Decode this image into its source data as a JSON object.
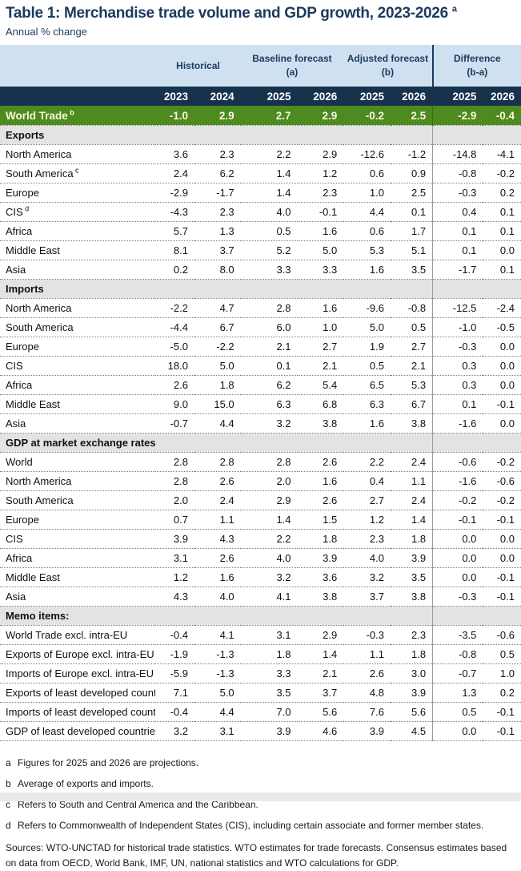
{
  "title": {
    "text": "Table 1: Merchandise trade volume and GDP growth, 2023-2026",
    "superscript": "a"
  },
  "subtitle": "Annual % change",
  "colors": {
    "title_navy": "#1c3a5e",
    "header_band_blue": "#cfe0f1",
    "year_band_navy": "#16324d",
    "world_trade_green": "#4d8a20",
    "world_trade_text": "#faf6dc",
    "section_gray": "#e3e3e3"
  },
  "table": {
    "group_headers": [
      {
        "label": "Historical",
        "sub": ""
      },
      {
        "label": "Baseline forecast",
        "sub": "(a)"
      },
      {
        "label": "Adjusted forecast",
        "sub": "(b)"
      },
      {
        "label": "Difference",
        "sub": "(b-a)"
      }
    ],
    "year_columns": [
      "2023",
      "2024",
      "2025",
      "2026",
      "2025",
      "2026",
      "2025",
      "2026"
    ],
    "world_trade_row": {
      "label": "World Trade",
      "superscript": "b",
      "values": [
        "-1.0",
        "2.9",
        "2.7",
        "2.9",
        "-0.2",
        "2.5",
        "-2.9",
        "-0.4"
      ]
    },
    "sections": [
      {
        "header": "Exports",
        "rows": [
          {
            "label": "North America",
            "superscript": "",
            "values": [
              "3.6",
              "2.3",
              "2.2",
              "2.9",
              "-12.6",
              "-1.2",
              "-14.8",
              "-4.1"
            ]
          },
          {
            "label": "South America",
            "superscript": "c",
            "values": [
              "2.4",
              "6.2",
              "1.4",
              "1.2",
              "0.6",
              "0.9",
              "-0.8",
              "-0.2"
            ]
          },
          {
            "label": "Europe",
            "superscript": "",
            "values": [
              "-2.9",
              "-1.7",
              "1.4",
              "2.3",
              "1.0",
              "2.5",
              "-0.3",
              "0.2"
            ]
          },
          {
            "label": "CIS",
            "superscript": "d",
            "values": [
              "-4.3",
              "2.3",
              "4.0",
              "-0.1",
              "4.4",
              "0.1",
              "0.4",
              "0.1"
            ]
          },
          {
            "label": "Africa",
            "superscript": "",
            "values": [
              "5.7",
              "1.3",
              "0.5",
              "1.6",
              "0.6",
              "1.7",
              "0.1",
              "0.1"
            ]
          },
          {
            "label": "Middle East",
            "superscript": "",
            "values": [
              "8.1",
              "3.7",
              "5.2",
              "5.0",
              "5.3",
              "5.1",
              "0.1",
              "0.0"
            ]
          },
          {
            "label": "Asia",
            "superscript": "",
            "values": [
              "0.2",
              "8.0",
              "3.3",
              "3.3",
              "1.6",
              "3.5",
              "-1.7",
              "0.1"
            ]
          }
        ]
      },
      {
        "header": "Imports",
        "rows": [
          {
            "label": "North America",
            "superscript": "",
            "values": [
              "-2.2",
              "4.7",
              "2.8",
              "1.6",
              "-9.6",
              "-0.8",
              "-12.5",
              "-2.4"
            ]
          },
          {
            "label": "South America",
            "superscript": "",
            "values": [
              "-4.4",
              "6.7",
              "6.0",
              "1.0",
              "5.0",
              "0.5",
              "-1.0",
              "-0.5"
            ]
          },
          {
            "label": "Europe",
            "superscript": "",
            "values": [
              "-5.0",
              "-2.2",
              "2.1",
              "2.7",
              "1.9",
              "2.7",
              "-0.3",
              "0.0"
            ]
          },
          {
            "label": "CIS",
            "superscript": "",
            "values": [
              "18.0",
              "5.0",
              "0.1",
              "2.1",
              "0.5",
              "2.1",
              "0.3",
              "0.0"
            ]
          },
          {
            "label": "Africa",
            "superscript": "",
            "values": [
              "2.6",
              "1.8",
              "6.2",
              "5.4",
              "6.5",
              "5.3",
              "0.3",
              "0.0"
            ]
          },
          {
            "label": "Middle East",
            "superscript": "",
            "values": [
              "9.0",
              "15.0",
              "6.3",
              "6.8",
              "6.3",
              "6.7",
              "0.1",
              "-0.1"
            ]
          },
          {
            "label": "Asia",
            "superscript": "",
            "values": [
              "-0.7",
              "4.4",
              "3.2",
              "3.8",
              "1.6",
              "3.8",
              "-1.6",
              "0.0"
            ]
          }
        ]
      },
      {
        "header": "GDP at market exchange rates",
        "rows": [
          {
            "label": "World",
            "superscript": "",
            "values": [
              "2.8",
              "2.8",
              "2.8",
              "2.6",
              "2.2",
              "2.4",
              "-0.6",
              "-0.2"
            ]
          },
          {
            "label": "North America",
            "superscript": "",
            "values": [
              "2.8",
              "2.6",
              "2.0",
              "1.6",
              "0.4",
              "1.1",
              "-1.6",
              "-0.6"
            ]
          },
          {
            "label": "South America",
            "superscript": "",
            "values": [
              "2.0",
              "2.4",
              "2.9",
              "2.6",
              "2.7",
              "2.4",
              "-0.2",
              "-0.2"
            ]
          },
          {
            "label": "Europe",
            "superscript": "",
            "values": [
              "0.7",
              "1.1",
              "1.4",
              "1.5",
              "1.2",
              "1.4",
              "-0.1",
              "-0.1"
            ]
          },
          {
            "label": "CIS",
            "superscript": "",
            "values": [
              "3.9",
              "4.3",
              "2.2",
              "1.8",
              "2.3",
              "1.8",
              "0.0",
              "0.0"
            ]
          },
          {
            "label": "Africa",
            "superscript": "",
            "values": [
              "3.1",
              "2.6",
              "4.0",
              "3.9",
              "4.0",
              "3.9",
              "0.0",
              "0.0"
            ]
          },
          {
            "label": "Middle East",
            "superscript": "",
            "values": [
              "1.2",
              "1.6",
              "3.2",
              "3.6",
              "3.2",
              "3.5",
              "0.0",
              "-0.1"
            ]
          },
          {
            "label": "Asia",
            "superscript": "",
            "values": [
              "4.3",
              "4.0",
              "4.1",
              "3.8",
              "3.7",
              "3.8",
              "-0.3",
              "-0.1"
            ]
          }
        ]
      },
      {
        "header": "Memo items:",
        "rows": [
          {
            "label": "World Trade excl. intra-EU",
            "superscript": "",
            "values": [
              "-0.4",
              "4.1",
              "3.1",
              "2.9",
              "-0.3",
              "2.3",
              "-3.5",
              "-0.6"
            ]
          },
          {
            "label": "Exports of Europe excl. intra-EU",
            "superscript": "",
            "values": [
              "-1.9",
              "-1.3",
              "1.8",
              "1.4",
              "1.1",
              "1.8",
              "-0.8",
              "0.5"
            ]
          },
          {
            "label": "Imports of Europe excl. intra-EU",
            "superscript": "",
            "values": [
              "-5.9",
              "-1.3",
              "3.3",
              "2.1",
              "2.6",
              "3.0",
              "-0.7",
              "1.0"
            ]
          },
          {
            "label": "Exports of least developed countries",
            "superscript": "",
            "values": [
              "7.1",
              "5.0",
              "3.5",
              "3.7",
              "4.8",
              "3.9",
              "1.3",
              "0.2"
            ]
          },
          {
            "label": "Imports of least developed countries",
            "superscript": "",
            "values": [
              "-0.4",
              "4.4",
              "7.0",
              "5.6",
              "7.6",
              "5.6",
              "0.5",
              "-0.1"
            ]
          },
          {
            "label": "GDP of least developed countries",
            "superscript": "",
            "values": [
              "3.2",
              "3.1",
              "3.9",
              "4.6",
              "3.9",
              "4.5",
              "0.0",
              "-0.1"
            ]
          }
        ]
      }
    ]
  },
  "footnotes": [
    {
      "marker": "a",
      "text": "Figures for 2025 and 2026 are projections."
    },
    {
      "marker": "b",
      "text": "Average of exports and imports."
    },
    {
      "marker": "c",
      "text": "Refers to South and Central America and the Caribbean."
    },
    {
      "marker": "d",
      "text": "Refers to Commonwealth of Independent States (CIS), including certain associate and former member states."
    }
  ],
  "sources": "Sources: WTO-UNCTAD for historical trade statistics. WTO estimates for trade forecasts.  Consensus estimates based on data from OECD, World Bank, IMF, UN, national statistics and WTO calculations for GDP."
}
